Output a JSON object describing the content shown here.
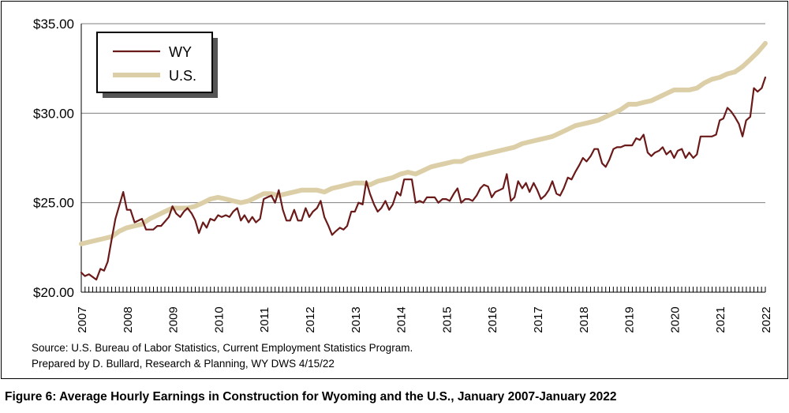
{
  "caption": "Figure 6: Average Hourly Earnings in Construction for Wyoming and the U.S., January 2007-January 2022",
  "source": {
    "line1": "Source: U.S. Bureau of Labor Statistics, Current Employment Statistics Program.",
    "line2": "Prepared by D. Bullard, Research & Planning, WY DWS 4/15/22"
  },
  "colors": {
    "wy": "#6b1a1a",
    "us": "#dccfa8",
    "grid": "#7f7f7f"
  },
  "chart_data": {
    "type": "line",
    "title": "",
    "xlabel": "",
    "ylabel": "",
    "xlim": [
      2007,
      2022
    ],
    "ylim": [
      20,
      35
    ],
    "yticks": [
      20,
      25,
      30,
      35
    ],
    "ytick_labels": [
      "$20.00",
      "$25.00",
      "$30.00",
      "$35.00"
    ],
    "xticks": [
      2007,
      2008,
      2009,
      2010,
      2011,
      2012,
      2013,
      2014,
      2015,
      2016,
      2017,
      2018,
      2019,
      2020,
      2021,
      2022
    ],
    "grid": "horizontal",
    "legend": "top-left",
    "series": [
      {
        "name": "WY",
        "color": "#6b1a1a",
        "points": [
          [
            2007.0,
            21.1
          ],
          [
            2007.08,
            20.9
          ],
          [
            2007.17,
            21.0
          ],
          [
            2007.33,
            20.7
          ],
          [
            2007.42,
            21.3
          ],
          [
            2007.5,
            21.2
          ],
          [
            2007.58,
            21.7
          ],
          [
            2007.67,
            23.0
          ],
          [
            2007.75,
            24.1
          ],
          [
            2007.92,
            25.6
          ],
          [
            2008.0,
            24.6
          ],
          [
            2008.08,
            24.6
          ],
          [
            2008.17,
            23.9
          ],
          [
            2008.33,
            24.1
          ],
          [
            2008.42,
            23.5
          ],
          [
            2008.58,
            23.5
          ],
          [
            2008.67,
            23.7
          ],
          [
            2008.75,
            23.7
          ],
          [
            2008.92,
            24.2
          ],
          [
            2009.0,
            24.8
          ],
          [
            2009.08,
            24.4
          ],
          [
            2009.17,
            24.2
          ],
          [
            2009.25,
            24.5
          ],
          [
            2009.33,
            24.7
          ],
          [
            2009.42,
            24.4
          ],
          [
            2009.5,
            24.0
          ],
          [
            2009.58,
            23.3
          ],
          [
            2009.67,
            23.9
          ],
          [
            2009.75,
            23.6
          ],
          [
            2009.83,
            24.1
          ],
          [
            2009.92,
            24.0
          ],
          [
            2010.0,
            24.3
          ],
          [
            2010.08,
            24.2
          ],
          [
            2010.17,
            24.3
          ],
          [
            2010.25,
            24.2
          ],
          [
            2010.33,
            24.5
          ],
          [
            2010.42,
            24.7
          ],
          [
            2010.5,
            24.0
          ],
          [
            2010.58,
            24.3
          ],
          [
            2010.67,
            23.9
          ],
          [
            2010.75,
            24.2
          ],
          [
            2010.83,
            23.9
          ],
          [
            2010.92,
            24.1
          ],
          [
            2011.0,
            25.2
          ],
          [
            2011.08,
            25.3
          ],
          [
            2011.17,
            25.4
          ],
          [
            2011.25,
            25.0
          ],
          [
            2011.33,
            25.7
          ],
          [
            2011.42,
            24.6
          ],
          [
            2011.5,
            24.0
          ],
          [
            2011.58,
            24.0
          ],
          [
            2011.67,
            24.6
          ],
          [
            2011.75,
            24.0
          ],
          [
            2011.83,
            24.0
          ],
          [
            2011.92,
            24.7
          ],
          [
            2012.0,
            24.2
          ],
          [
            2012.08,
            24.5
          ],
          [
            2012.17,
            24.7
          ],
          [
            2012.25,
            25.1
          ],
          [
            2012.33,
            24.2
          ],
          [
            2012.42,
            23.7
          ],
          [
            2012.5,
            23.2
          ],
          [
            2012.58,
            23.4
          ],
          [
            2012.67,
            23.6
          ],
          [
            2012.75,
            23.5
          ],
          [
            2012.83,
            23.7
          ],
          [
            2012.92,
            24.5
          ],
          [
            2013.0,
            24.5
          ],
          [
            2013.08,
            25.0
          ],
          [
            2013.17,
            24.9
          ],
          [
            2013.25,
            26.2
          ],
          [
            2013.33,
            25.5
          ],
          [
            2013.42,
            24.9
          ],
          [
            2013.5,
            24.5
          ],
          [
            2013.58,
            24.7
          ],
          [
            2013.67,
            25.1
          ],
          [
            2013.75,
            24.6
          ],
          [
            2013.83,
            24.9
          ],
          [
            2013.92,
            25.6
          ],
          [
            2014.0,
            25.4
          ],
          [
            2014.08,
            26.3
          ],
          [
            2014.17,
            26.3
          ],
          [
            2014.25,
            26.3
          ],
          [
            2014.33,
            25.0
          ],
          [
            2014.42,
            25.1
          ],
          [
            2014.5,
            25.0
          ],
          [
            2014.58,
            25.3
          ],
          [
            2014.75,
            25.3
          ],
          [
            2014.83,
            25.0
          ],
          [
            2014.92,
            25.2
          ],
          [
            2015.0,
            25.2
          ],
          [
            2015.08,
            25.1
          ],
          [
            2015.17,
            25.5
          ],
          [
            2015.25,
            25.8
          ],
          [
            2015.33,
            25.0
          ],
          [
            2015.42,
            25.2
          ],
          [
            2015.5,
            25.2
          ],
          [
            2015.58,
            25.1
          ],
          [
            2015.67,
            25.4
          ],
          [
            2015.75,
            25.8
          ],
          [
            2015.83,
            26.0
          ],
          [
            2015.92,
            25.9
          ],
          [
            2016.0,
            25.3
          ],
          [
            2016.08,
            25.6
          ],
          [
            2016.17,
            25.7
          ],
          [
            2016.25,
            25.8
          ],
          [
            2016.33,
            26.6
          ],
          [
            2016.42,
            25.1
          ],
          [
            2016.5,
            25.3
          ],
          [
            2016.58,
            26.2
          ],
          [
            2016.67,
            25.8
          ],
          [
            2016.75,
            26.1
          ],
          [
            2016.83,
            25.6
          ],
          [
            2016.92,
            26.1
          ],
          [
            2017.0,
            25.7
          ],
          [
            2017.08,
            25.2
          ],
          [
            2017.17,
            25.4
          ],
          [
            2017.25,
            25.7
          ],
          [
            2017.33,
            26.2
          ],
          [
            2017.42,
            25.5
          ],
          [
            2017.5,
            25.4
          ],
          [
            2017.58,
            25.8
          ],
          [
            2017.67,
            26.4
          ],
          [
            2017.75,
            26.3
          ],
          [
            2017.83,
            26.7
          ],
          [
            2017.92,
            27.1
          ],
          [
            2018.0,
            27.5
          ],
          [
            2018.08,
            27.3
          ],
          [
            2018.17,
            27.6
          ],
          [
            2018.25,
            28.0
          ],
          [
            2018.33,
            28.0
          ],
          [
            2018.42,
            27.2
          ],
          [
            2018.5,
            27.0
          ],
          [
            2018.58,
            27.4
          ],
          [
            2018.67,
            28.0
          ],
          [
            2018.75,
            28.1
          ],
          [
            2018.83,
            28.1
          ],
          [
            2018.92,
            28.2
          ],
          [
            2019.0,
            28.2
          ],
          [
            2019.08,
            28.2
          ],
          [
            2019.17,
            28.6
          ],
          [
            2019.25,
            28.5
          ],
          [
            2019.33,
            28.8
          ],
          [
            2019.42,
            27.8
          ],
          [
            2019.5,
            27.6
          ],
          [
            2019.58,
            27.8
          ],
          [
            2019.67,
            27.9
          ],
          [
            2019.75,
            28.1
          ],
          [
            2019.83,
            27.7
          ],
          [
            2019.92,
            27.9
          ],
          [
            2020.0,
            27.5
          ],
          [
            2020.08,
            27.9
          ],
          [
            2020.17,
            28.0
          ],
          [
            2020.25,
            27.5
          ],
          [
            2020.33,
            27.8
          ],
          [
            2020.42,
            27.5
          ],
          [
            2020.5,
            27.7
          ],
          [
            2020.58,
            28.7
          ],
          [
            2020.67,
            28.7
          ],
          [
            2020.75,
            28.7
          ],
          [
            2020.83,
            28.7
          ],
          [
            2020.92,
            28.8
          ],
          [
            2021.0,
            29.6
          ],
          [
            2021.08,
            29.7
          ],
          [
            2021.17,
            30.3
          ],
          [
            2021.25,
            30.1
          ],
          [
            2021.33,
            29.8
          ],
          [
            2021.42,
            29.4
          ],
          [
            2021.5,
            28.7
          ],
          [
            2021.58,
            29.6
          ],
          [
            2021.67,
            29.8
          ],
          [
            2021.75,
            31.4
          ],
          [
            2021.83,
            31.2
          ],
          [
            2021.92,
            31.4
          ],
          [
            2022.0,
            32.0
          ]
        ]
      },
      {
        "name": "U.S.",
        "color": "#dccfa8",
        "points": [
          [
            2007.0,
            22.7
          ],
          [
            2007.17,
            22.8
          ],
          [
            2007.33,
            22.9
          ],
          [
            2007.5,
            23.0
          ],
          [
            2007.67,
            23.1
          ],
          [
            2007.83,
            23.4
          ],
          [
            2008.0,
            23.6
          ],
          [
            2008.17,
            23.7
          ],
          [
            2008.33,
            23.8
          ],
          [
            2008.5,
            24.1
          ],
          [
            2008.67,
            24.3
          ],
          [
            2008.83,
            24.5
          ],
          [
            2009.0,
            24.7
          ],
          [
            2009.17,
            24.7
          ],
          [
            2009.33,
            24.7
          ],
          [
            2009.5,
            24.8
          ],
          [
            2009.67,
            25.0
          ],
          [
            2009.83,
            25.2
          ],
          [
            2010.0,
            25.3
          ],
          [
            2010.17,
            25.2
          ],
          [
            2010.33,
            25.1
          ],
          [
            2010.5,
            25.0
          ],
          [
            2010.67,
            25.1
          ],
          [
            2010.83,
            25.3
          ],
          [
            2011.0,
            25.5
          ],
          [
            2011.17,
            25.5
          ],
          [
            2011.33,
            25.4
          ],
          [
            2011.5,
            25.5
          ],
          [
            2011.67,
            25.6
          ],
          [
            2011.83,
            25.7
          ],
          [
            2012.0,
            25.7
          ],
          [
            2012.17,
            25.7
          ],
          [
            2012.33,
            25.6
          ],
          [
            2012.5,
            25.8
          ],
          [
            2012.67,
            25.9
          ],
          [
            2012.83,
            26.0
          ],
          [
            2013.0,
            26.1
          ],
          [
            2013.17,
            26.1
          ],
          [
            2013.33,
            26.0
          ],
          [
            2013.5,
            26.2
          ],
          [
            2013.67,
            26.3
          ],
          [
            2013.83,
            26.4
          ],
          [
            2014.0,
            26.6
          ],
          [
            2014.17,
            26.7
          ],
          [
            2014.33,
            26.6
          ],
          [
            2014.5,
            26.8
          ],
          [
            2014.67,
            27.0
          ],
          [
            2014.83,
            27.1
          ],
          [
            2015.0,
            27.2
          ],
          [
            2015.17,
            27.3
          ],
          [
            2015.33,
            27.3
          ],
          [
            2015.5,
            27.5
          ],
          [
            2015.67,
            27.6
          ],
          [
            2015.83,
            27.7
          ],
          [
            2016.0,
            27.8
          ],
          [
            2016.17,
            27.9
          ],
          [
            2016.33,
            28.0
          ],
          [
            2016.5,
            28.1
          ],
          [
            2016.67,
            28.3
          ],
          [
            2016.83,
            28.4
          ],
          [
            2017.0,
            28.5
          ],
          [
            2017.17,
            28.6
          ],
          [
            2017.33,
            28.7
          ],
          [
            2017.5,
            28.9
          ],
          [
            2017.67,
            29.1
          ],
          [
            2017.83,
            29.3
          ],
          [
            2018.0,
            29.4
          ],
          [
            2018.17,
            29.5
          ],
          [
            2018.33,
            29.6
          ],
          [
            2018.5,
            29.8
          ],
          [
            2018.67,
            30.0
          ],
          [
            2018.83,
            30.2
          ],
          [
            2019.0,
            30.5
          ],
          [
            2019.17,
            30.5
          ],
          [
            2019.33,
            30.6
          ],
          [
            2019.5,
            30.7
          ],
          [
            2019.67,
            30.9
          ],
          [
            2019.83,
            31.1
          ],
          [
            2020.0,
            31.3
          ],
          [
            2020.17,
            31.3
          ],
          [
            2020.33,
            31.3
          ],
          [
            2020.5,
            31.4
          ],
          [
            2020.67,
            31.7
          ],
          [
            2020.83,
            31.9
          ],
          [
            2021.0,
            32.0
          ],
          [
            2021.17,
            32.2
          ],
          [
            2021.33,
            32.3
          ],
          [
            2021.5,
            32.6
          ],
          [
            2021.67,
            33.0
          ],
          [
            2021.83,
            33.4
          ],
          [
            2022.0,
            33.9
          ]
        ]
      }
    ]
  }
}
